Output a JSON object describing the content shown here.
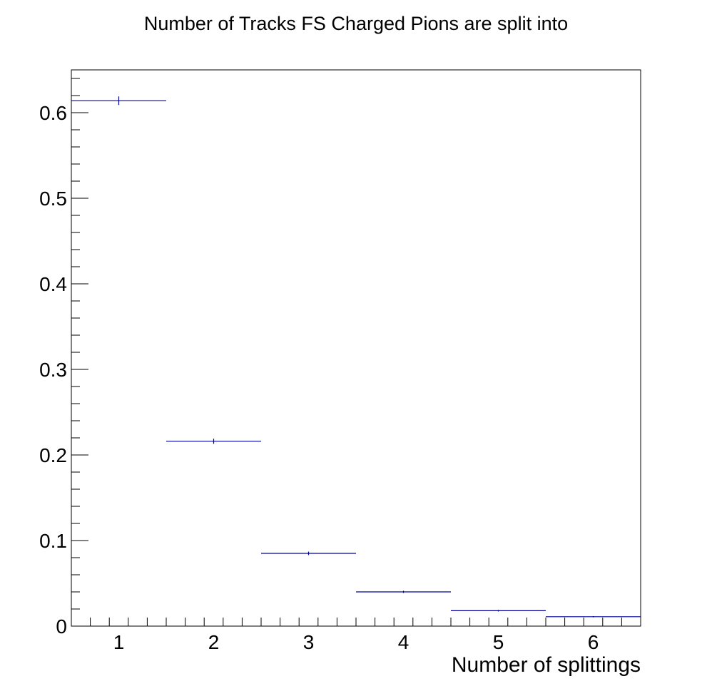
{
  "chart_data": {
    "type": "scatter",
    "title": "Number of Tracks FS Charged Pions are split into",
    "xlabel": "Number of splittings",
    "ylabel": "",
    "xlim": [
      0.5,
      6.5
    ],
    "ylim": [
      0,
      0.65
    ],
    "grid": false,
    "legend": "none",
    "x_ticks": [
      1,
      2,
      3,
      4,
      5,
      6
    ],
    "x_tick_labels": [
      "1",
      "2",
      "3",
      "4",
      "5",
      "6"
    ],
    "y_ticks": [
      0,
      0.1,
      0.2,
      0.3,
      0.4,
      0.5,
      0.6
    ],
    "y_tick_labels": [
      "0",
      "0.1",
      "0.2",
      "0.3",
      "0.4",
      "0.5",
      "0.6"
    ],
    "series": [
      {
        "color": "#000099",
        "x": [
          1,
          2,
          3,
          4,
          5,
          6
        ],
        "values": [
          0.614,
          0.216,
          0.085,
          0.04,
          0.018,
          0.011
        ],
        "bin_half_width": 0.5,
        "errors": [
          0.005,
          0.003,
          0.002,
          0.0013,
          0.0009,
          0.0007
        ]
      }
    ]
  }
}
